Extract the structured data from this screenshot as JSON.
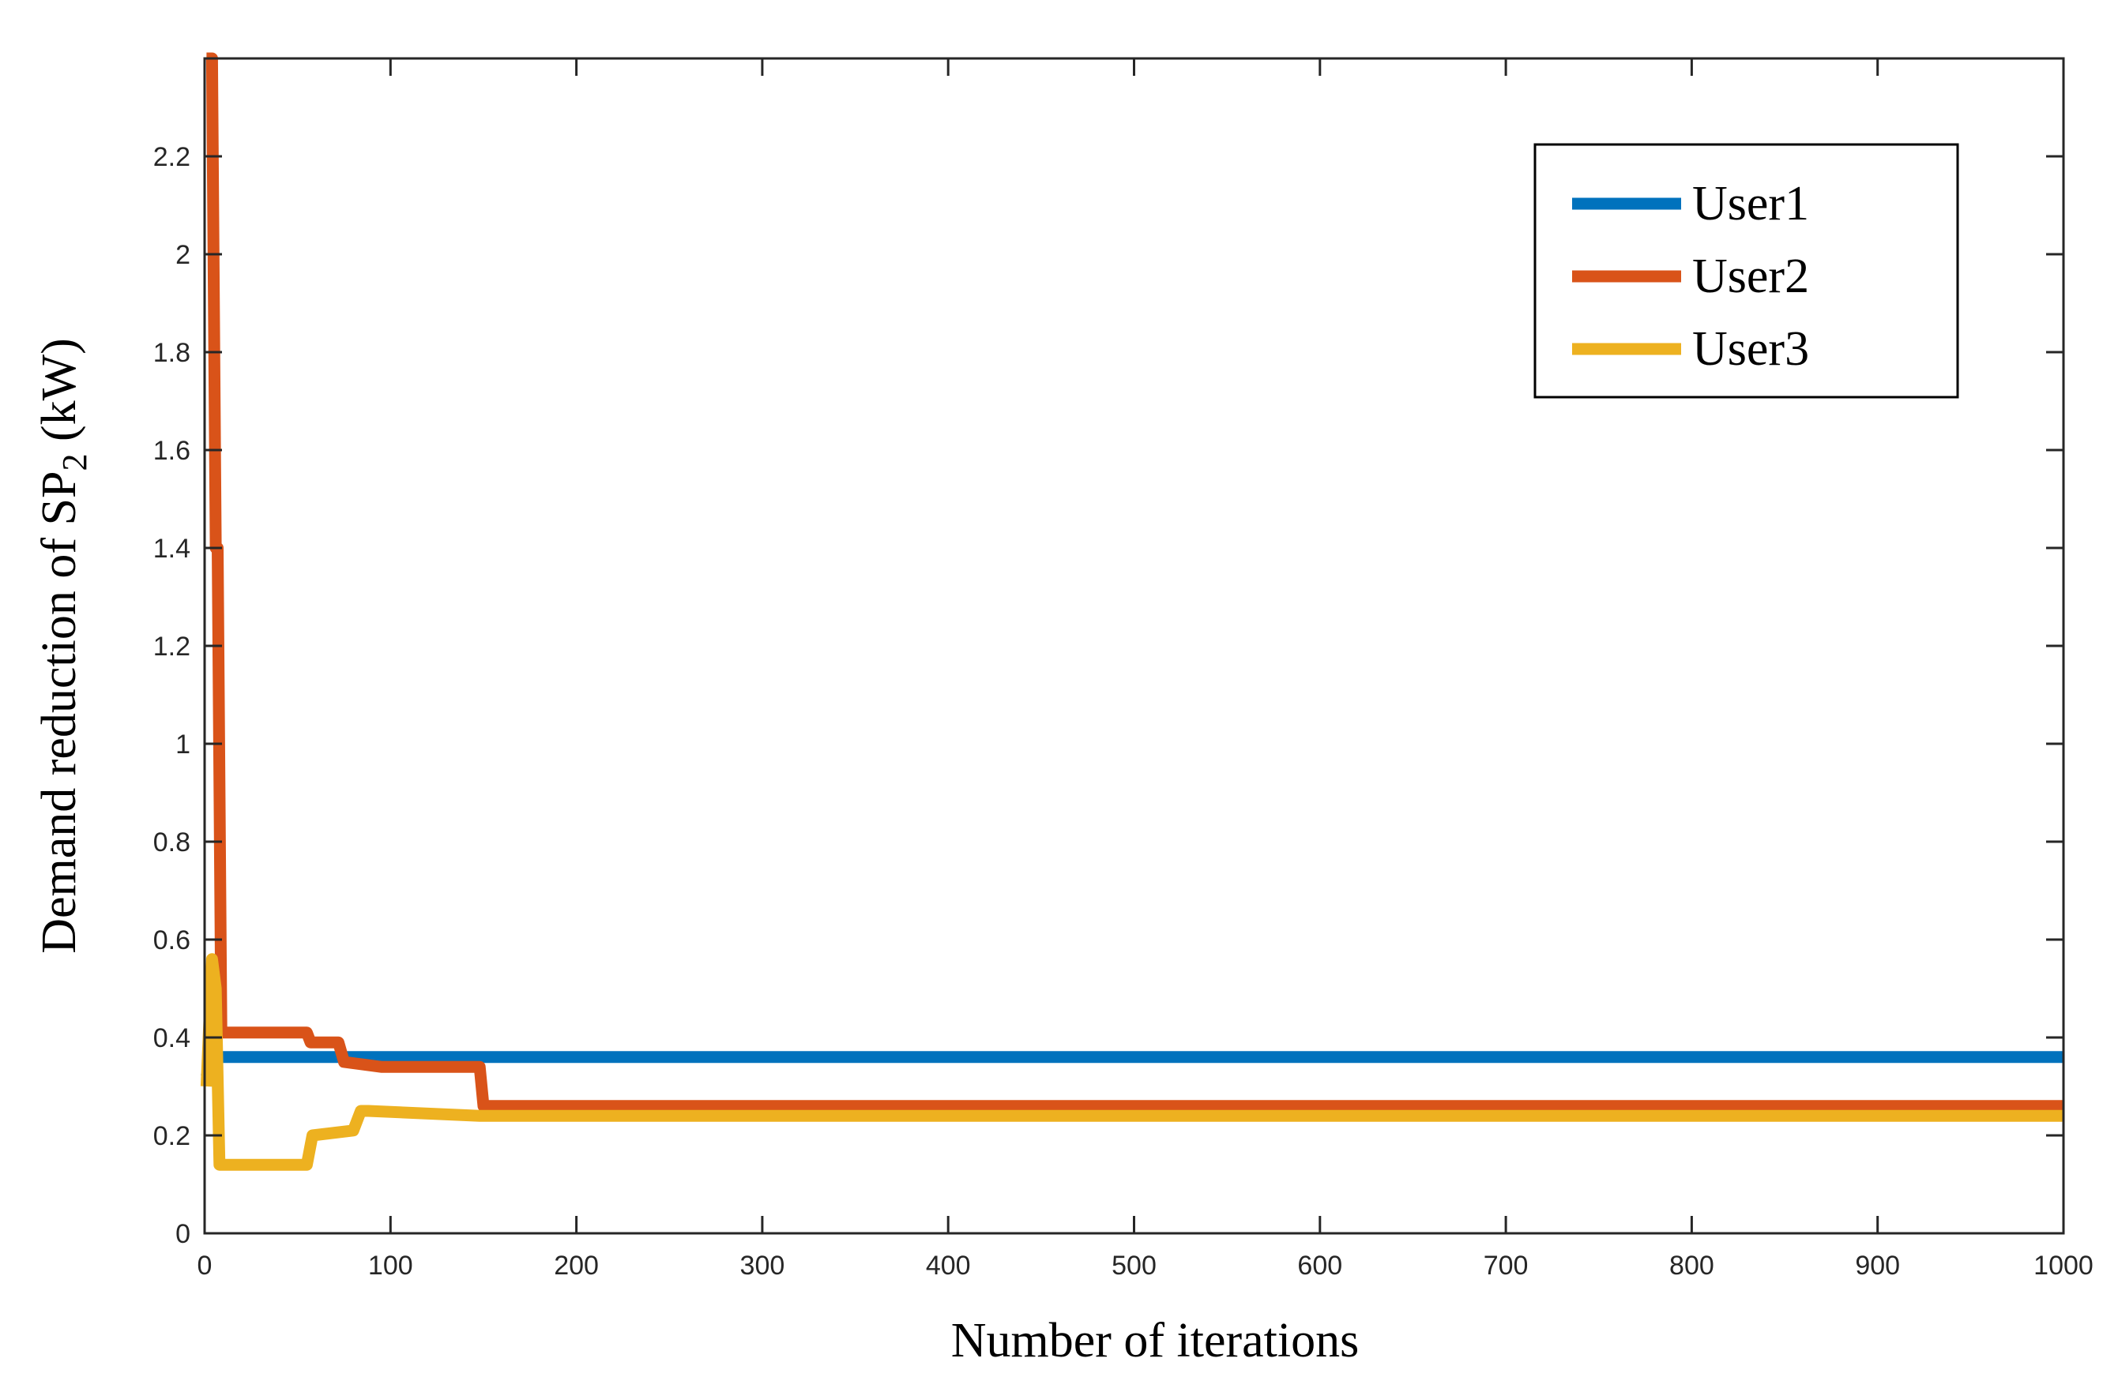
{
  "chart_data": {
    "type": "line",
    "title": "",
    "xlabel": "Number of iterations",
    "ylabel": {
      "prefix": "Demand reduction of SP",
      "subscript": "2",
      "suffix": " (kW)"
    },
    "xlim": [
      0,
      1000
    ],
    "ylim": [
      0,
      2.4
    ],
    "xticks": [
      0,
      100,
      200,
      300,
      400,
      500,
      600,
      700,
      800,
      900,
      1000
    ],
    "xtick_labels": [
      "0",
      "100",
      "200",
      "300",
      "400",
      "500",
      "600",
      "700",
      "800",
      "900",
      "1000"
    ],
    "yticks": [
      0,
      0.2,
      0.4,
      0.6,
      0.8,
      1,
      1.2,
      1.4,
      1.6,
      1.8,
      2,
      2.2
    ],
    "ytick_labels": [
      "0",
      "0.2",
      "0.4",
      "0.6",
      "0.8",
      "1",
      "1.2",
      "1.4",
      "1.6",
      "1.8",
      "2",
      "2.2"
    ],
    "grid": false,
    "legend_position": "top-right",
    "series": [
      {
        "name": "User1",
        "color": "#0072BD",
        "points": [
          [
            1,
            0.32
          ],
          [
            4,
            0.36
          ],
          [
            1000,
            0.36
          ]
        ]
      },
      {
        "name": "User2",
        "color": "#D95319",
        "points": [
          [
            1,
            2.4
          ],
          [
            4,
            2.4
          ],
          [
            6,
            1.4
          ],
          [
            7,
            1.4
          ],
          [
            9,
            0.41
          ],
          [
            55,
            0.41
          ],
          [
            57,
            0.39
          ],
          [
            70,
            0.39
          ],
          [
            72,
            0.39
          ],
          [
            75,
            0.35
          ],
          [
            95,
            0.34
          ],
          [
            148,
            0.34
          ],
          [
            150,
            0.26
          ],
          [
            1000,
            0.26
          ]
        ]
      },
      {
        "name": "User3",
        "color": "#EDB120",
        "points": [
          [
            1,
            0.3
          ],
          [
            4,
            0.56
          ],
          [
            6,
            0.5
          ],
          [
            8,
            0.14
          ],
          [
            55,
            0.14
          ],
          [
            58,
            0.2
          ],
          [
            80,
            0.21
          ],
          [
            84,
            0.25
          ],
          [
            88,
            0.25
          ],
          [
            148,
            0.24
          ],
          [
            1000,
            0.24
          ]
        ]
      }
    ]
  }
}
